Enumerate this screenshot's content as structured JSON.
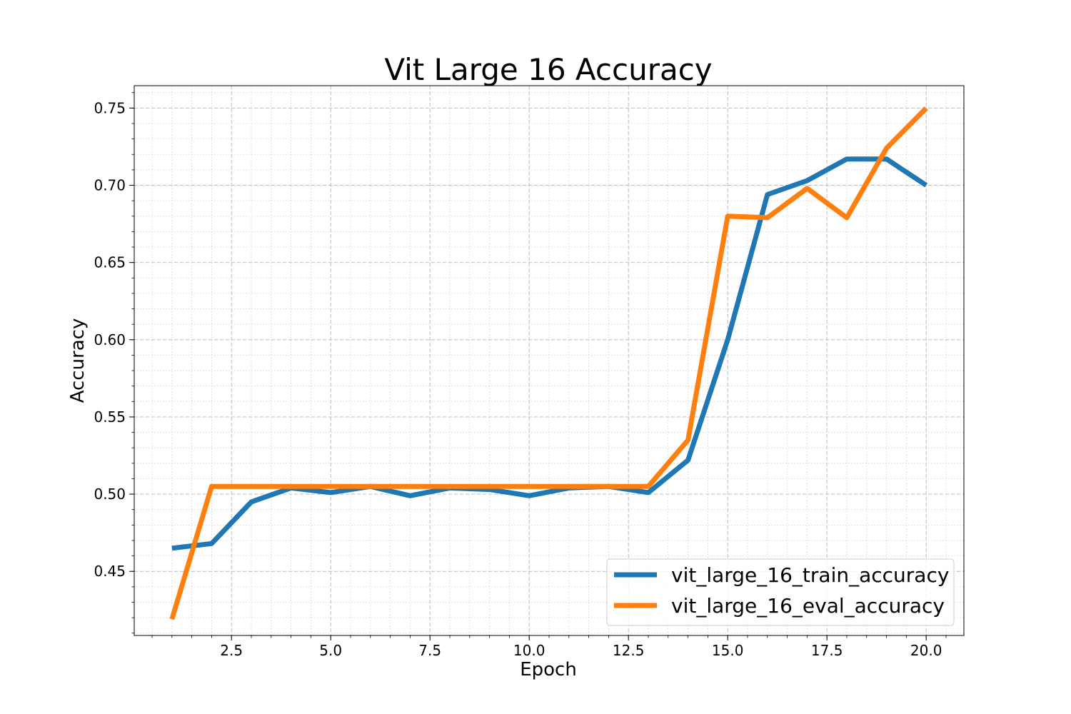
{
  "chart_data": {
    "type": "line",
    "title": "Vit Large 16 Accuracy",
    "xlabel": "Epoch",
    "ylabel": "Accuracy",
    "xlim": [
      0.05,
      20.95
    ],
    "ylim": [
      0.4085,
      0.7645
    ],
    "xticks": [
      2.5,
      5.0,
      7.5,
      10.0,
      12.5,
      15.0,
      17.5,
      20.0
    ],
    "xtick_labels": [
      "2.5",
      "5.0",
      "7.5",
      "10.0",
      "12.5",
      "15.0",
      "17.5",
      "20.0"
    ],
    "yticks": [
      0.45,
      0.5,
      0.55,
      0.6,
      0.65,
      0.7,
      0.75
    ],
    "ytick_labels": [
      "0.45",
      "0.50",
      "0.55",
      "0.60",
      "0.65",
      "0.70",
      "0.75"
    ],
    "grid": true,
    "legend_position": "lower-right",
    "x": [
      1,
      2,
      3,
      4,
      5,
      6,
      7,
      8,
      9,
      10,
      11,
      12,
      13,
      14,
      15,
      16,
      17,
      18,
      19,
      20
    ],
    "series": [
      {
        "name": "vit_large_16_train_accuracy",
        "color": "#1f77b4",
        "values": [
          0.465,
          0.468,
          0.495,
          0.504,
          0.501,
          0.505,
          0.499,
          0.504,
          0.503,
          0.499,
          0.504,
          0.505,
          0.501,
          0.522,
          0.6,
          0.694,
          0.703,
          0.717,
          0.717,
          0.7
        ]
      },
      {
        "name": "vit_large_16_eval_accuracy",
        "color": "#ff7f0e",
        "values": [
          0.419,
          0.505,
          0.505,
          0.505,
          0.505,
          0.505,
          0.505,
          0.505,
          0.505,
          0.505,
          0.505,
          0.505,
          0.505,
          0.535,
          0.68,
          0.679,
          0.698,
          0.679,
          0.724,
          0.75
        ]
      }
    ]
  }
}
